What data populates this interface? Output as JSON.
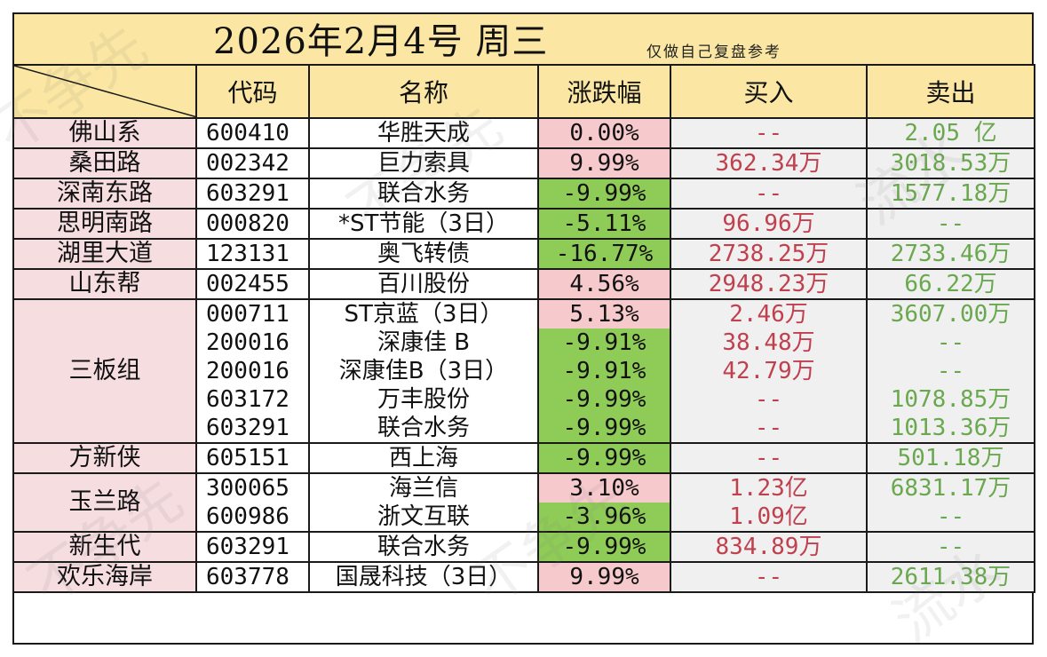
{
  "title": "2026年2月4号  周三",
  "subtitle": "仅做自己复盘参考",
  "headers": {
    "code": "代码",
    "name": "名称",
    "change": "涨跌幅",
    "buy": "买入",
    "sell": "卖出"
  },
  "colors": {
    "header_bg": "#fbe7a3",
    "group_bg": "#f6dde0",
    "up_bg": "#f6c9cc",
    "down_bg": "#8fcc57",
    "buy_text": "#c0404e",
    "sell_text": "#6aa84f"
  },
  "groups": [
    {
      "name": "佛山系",
      "rows": [
        {
          "code": "600410",
          "name": "华胜天成",
          "change": "0.00%",
          "dir": "flat",
          "buy": "--",
          "sell": "2.05 亿"
        }
      ]
    },
    {
      "name": "桑田路",
      "rows": [
        {
          "code": "002342",
          "name": "巨力索具",
          "change": "9.99%",
          "dir": "up",
          "buy": "362.34万",
          "sell": "3018.53万"
        }
      ]
    },
    {
      "name": "深南东路",
      "rows": [
        {
          "code": "603291",
          "name": "联合水务",
          "change": "-9.99%",
          "dir": "down",
          "buy": "--",
          "sell": "1577.18万"
        }
      ]
    },
    {
      "name": "思明南路",
      "rows": [
        {
          "code": "000820",
          "name": "*ST节能（3日）",
          "change": "-5.11%",
          "dir": "down",
          "buy": "96.96万",
          "sell": "--"
        }
      ]
    },
    {
      "name": "湖里大道",
      "rows": [
        {
          "code": "123131",
          "name": "奥飞转债",
          "change": "-16.77%",
          "dir": "down",
          "buy": "2738.25万",
          "sell": "2733.46万"
        }
      ]
    },
    {
      "name": "山东帮",
      "rows": [
        {
          "code": "002455",
          "name": "百川股份",
          "change": "4.56%",
          "dir": "up",
          "buy": "2948.23万",
          "sell": "66.22万"
        }
      ]
    },
    {
      "name": "三板组",
      "rows": [
        {
          "code": "000711",
          "name": "ST京蓝（3日）",
          "change": "5.13%",
          "dir": "up",
          "buy": "2.46万",
          "sell": "3607.00万"
        },
        {
          "code": "200016",
          "name": "深康佳 B",
          "change": "-9.91%",
          "dir": "down",
          "buy": "38.48万",
          "sell": "--"
        },
        {
          "code": "200016",
          "name": "深康佳B（3日）",
          "change": "-9.91%",
          "dir": "down",
          "buy": "42.79万",
          "sell": "--"
        },
        {
          "code": "603172",
          "name": "万丰股份",
          "change": "-9.99%",
          "dir": "down",
          "buy": "--",
          "sell": "1078.85万"
        },
        {
          "code": "603291",
          "name": "联合水务",
          "change": "-9.99%",
          "dir": "down",
          "buy": "--",
          "sell": "1013.36万"
        }
      ]
    },
    {
      "name": "方新侠",
      "rows": [
        {
          "code": "605151",
          "name": "西上海",
          "change": "-9.99%",
          "dir": "down",
          "buy": "--",
          "sell": "501.18万"
        }
      ]
    },
    {
      "name": "玉兰路",
      "rows": [
        {
          "code": "300065",
          "name": "海兰信",
          "change": "3.10%",
          "dir": "up",
          "buy": "1.23亿",
          "sell": "6831.17万"
        },
        {
          "code": "600986",
          "name": "浙文互联",
          "change": "-3.96%",
          "dir": "down",
          "buy": "1.09亿",
          "sell": "--"
        }
      ]
    },
    {
      "name": "新生代",
      "rows": [
        {
          "code": "603291",
          "name": "联合水务",
          "change": "-9.99%",
          "dir": "down",
          "buy": "834.89万",
          "sell": "--"
        }
      ]
    },
    {
      "name": "欢乐海岸",
      "rows": [
        {
          "code": "603778",
          "name": "国晟科技（3日）",
          "change": "9.99%",
          "dir": "up",
          "buy": "--",
          "sell": "2611.38万"
        }
      ]
    }
  ]
}
